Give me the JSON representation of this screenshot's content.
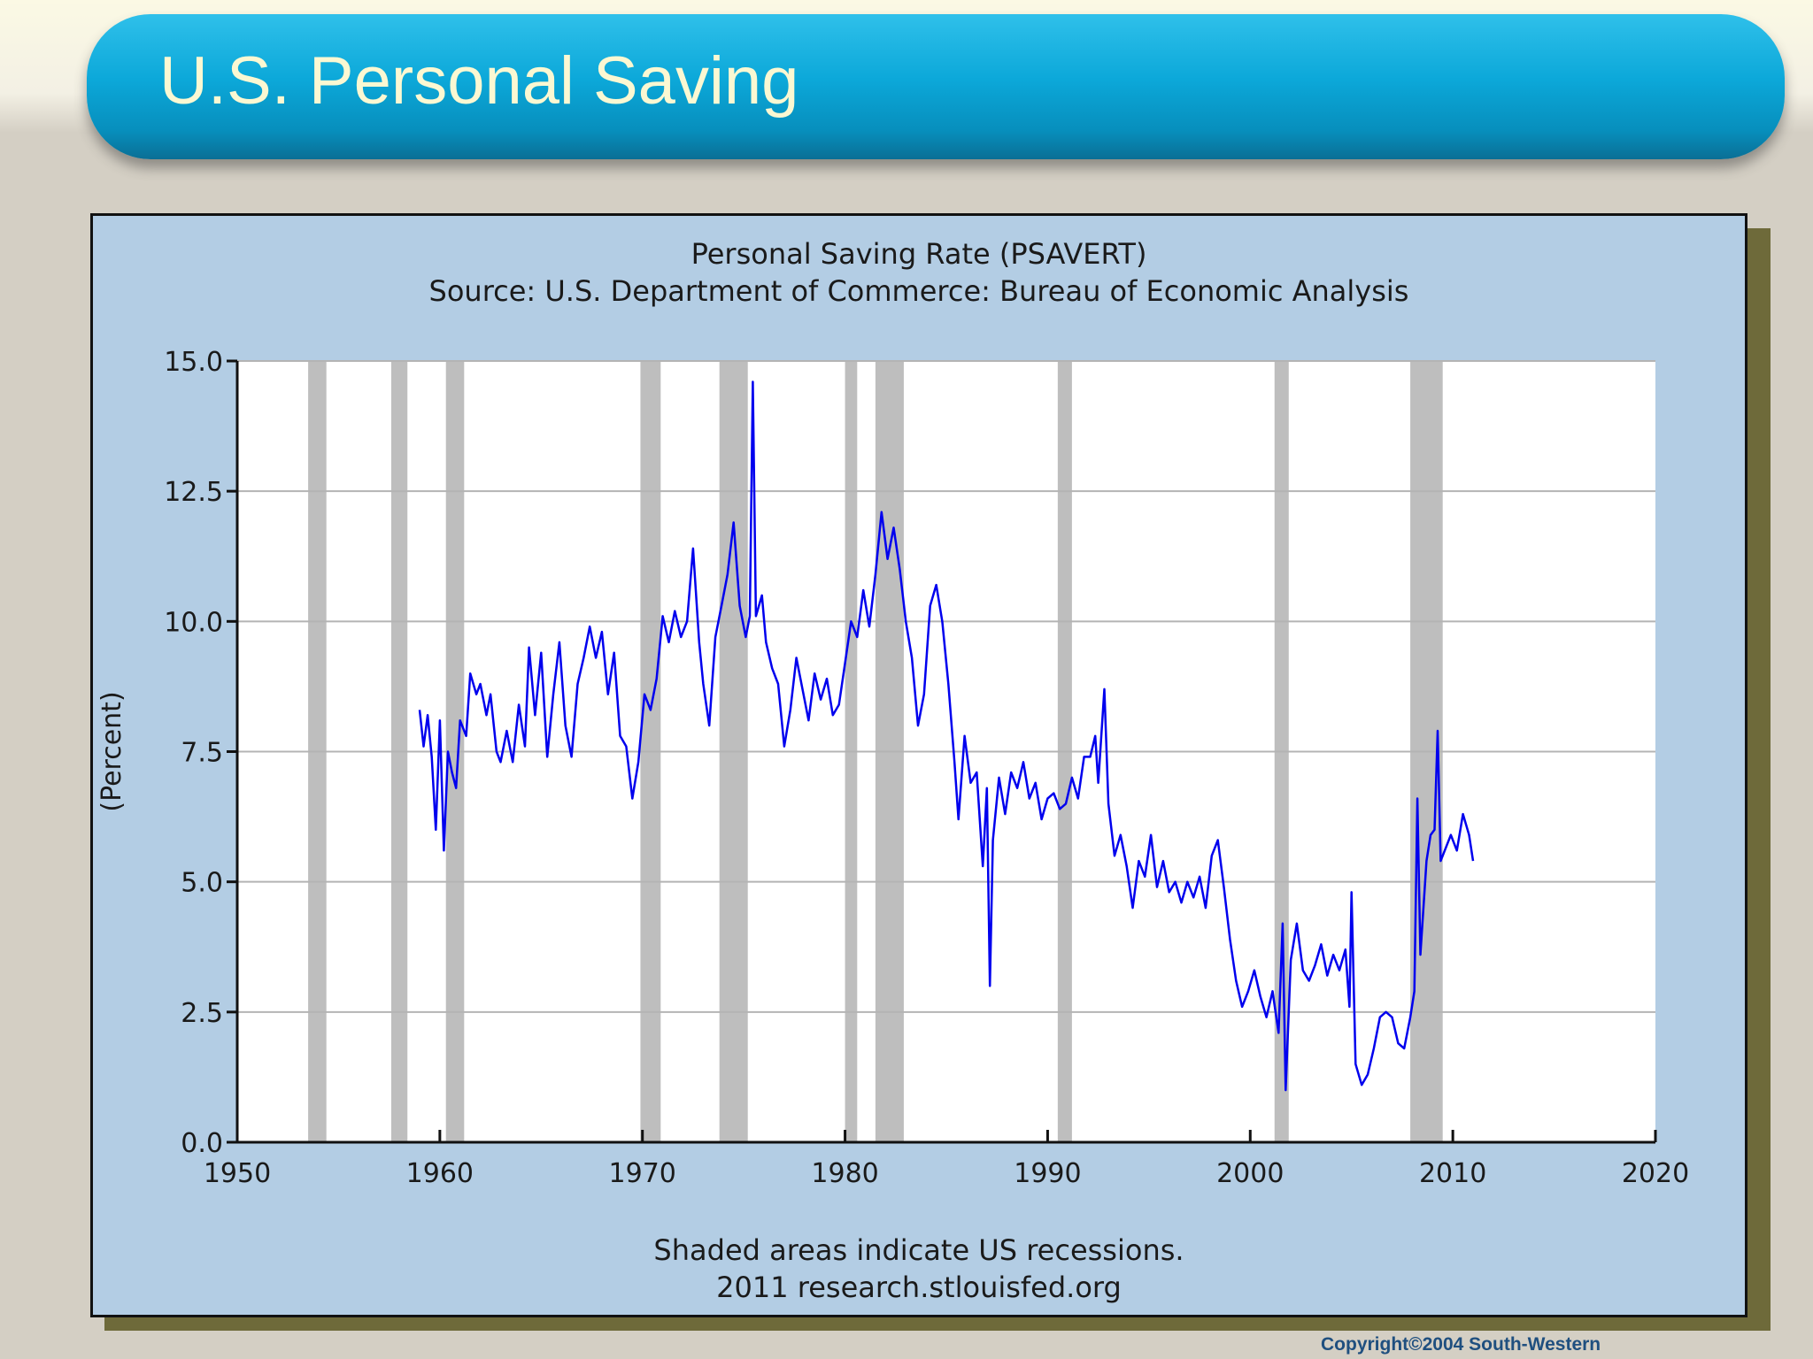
{
  "slide": {
    "title": "U.S. Personal Saving",
    "copyright": "Copyright©2004  South-Western"
  },
  "colors": {
    "line": "#0000ee",
    "recession": "#bebebe",
    "plot_bg": "#ffffff",
    "panel_bg": "#b3cde4"
  },
  "chart_data": {
    "type": "line",
    "title": "Personal Saving Rate (PSAVERT)",
    "subtitle": "Source: U.S. Department of Commerce: Bureau of Economic Analysis",
    "ylabel": "(Percent)",
    "xlabel": "",
    "xlim": [
      1950,
      2020
    ],
    "ylim": [
      0,
      15
    ],
    "xticks": [
      "1950",
      "1960",
      "1970",
      "1980",
      "1990",
      "2000",
      "2010",
      "2020"
    ],
    "yticks": [
      "0.0",
      "2.5",
      "5.0",
      "7.5",
      "10.0",
      "12.5",
      "15.0"
    ],
    "grid": true,
    "footnote": [
      "Shaded areas indicate US recessions.",
      "2011 research.stlouisfed.org"
    ],
    "recessions": [
      [
        1953.5,
        1954.4
      ],
      [
        1957.6,
        1958.4
      ],
      [
        1960.3,
        1961.2
      ],
      [
        1969.9,
        1970.9
      ],
      [
        1973.8,
        1975.2
      ],
      [
        1980.0,
        1980.6
      ],
      [
        1981.5,
        1982.9
      ],
      [
        1990.5,
        1991.2
      ],
      [
        2001.2,
        2001.9
      ],
      [
        2007.9,
        2009.5
      ]
    ],
    "series": [
      {
        "values": [
          [
            1959.0,
            8.3
          ],
          [
            1959.2,
            7.6
          ],
          [
            1959.4,
            8.2
          ],
          [
            1959.6,
            7.4
          ],
          [
            1959.8,
            6.0
          ],
          [
            1960.0,
            8.1
          ],
          [
            1960.2,
            5.6
          ],
          [
            1960.4,
            7.5
          ],
          [
            1960.6,
            7.1
          ],
          [
            1960.8,
            6.8
          ],
          [
            1961.0,
            8.1
          ],
          [
            1961.3,
            7.8
          ],
          [
            1961.5,
            9.0
          ],
          [
            1961.8,
            8.6
          ],
          [
            1962.0,
            8.8
          ],
          [
            1962.3,
            8.2
          ],
          [
            1962.5,
            8.6
          ],
          [
            1962.8,
            7.5
          ],
          [
            1963.0,
            7.3
          ],
          [
            1963.3,
            7.9
          ],
          [
            1963.6,
            7.3
          ],
          [
            1963.9,
            8.4
          ],
          [
            1964.2,
            7.6
          ],
          [
            1964.4,
            9.5
          ],
          [
            1964.7,
            8.2
          ],
          [
            1965.0,
            9.4
          ],
          [
            1965.3,
            7.4
          ],
          [
            1965.6,
            8.6
          ],
          [
            1965.9,
            9.6
          ],
          [
            1966.2,
            8.0
          ],
          [
            1966.5,
            7.4
          ],
          [
            1966.8,
            8.8
          ],
          [
            1967.1,
            9.3
          ],
          [
            1967.4,
            9.9
          ],
          [
            1967.7,
            9.3
          ],
          [
            1968.0,
            9.8
          ],
          [
            1968.3,
            8.6
          ],
          [
            1968.6,
            9.4
          ],
          [
            1968.9,
            7.8
          ],
          [
            1969.2,
            7.6
          ],
          [
            1969.5,
            6.6
          ],
          [
            1969.8,
            7.3
          ],
          [
            1970.1,
            8.6
          ],
          [
            1970.4,
            8.3
          ],
          [
            1970.7,
            8.9
          ],
          [
            1971.0,
            10.1
          ],
          [
            1971.3,
            9.6
          ],
          [
            1971.6,
            10.2
          ],
          [
            1971.9,
            9.7
          ],
          [
            1972.2,
            10.0
          ],
          [
            1972.5,
            11.4
          ],
          [
            1972.8,
            9.6
          ],
          [
            1973.0,
            8.8
          ],
          [
            1973.3,
            8.0
          ],
          [
            1973.6,
            9.7
          ],
          [
            1973.9,
            10.3
          ],
          [
            1974.2,
            10.9
          ],
          [
            1974.5,
            11.9
          ],
          [
            1974.8,
            10.3
          ],
          [
            1975.1,
            9.7
          ],
          [
            1975.3,
            10.1
          ],
          [
            1975.45,
            14.6
          ],
          [
            1975.6,
            10.1
          ],
          [
            1975.9,
            10.5
          ],
          [
            1976.1,
            9.6
          ],
          [
            1976.4,
            9.1
          ],
          [
            1976.7,
            8.8
          ],
          [
            1977.0,
            7.6
          ],
          [
            1977.3,
            8.3
          ],
          [
            1977.6,
            9.3
          ],
          [
            1977.9,
            8.7
          ],
          [
            1978.2,
            8.1
          ],
          [
            1978.5,
            9.0
          ],
          [
            1978.8,
            8.5
          ],
          [
            1979.1,
            8.9
          ],
          [
            1979.4,
            8.2
          ],
          [
            1979.7,
            8.4
          ],
          [
            1980.0,
            9.2
          ],
          [
            1980.3,
            10.0
          ],
          [
            1980.6,
            9.7
          ],
          [
            1980.9,
            10.6
          ],
          [
            1981.2,
            9.9
          ],
          [
            1981.5,
            10.9
          ],
          [
            1981.8,
            12.1
          ],
          [
            1982.1,
            11.2
          ],
          [
            1982.4,
            11.8
          ],
          [
            1982.7,
            11.0
          ],
          [
            1983.0,
            10.0
          ],
          [
            1983.3,
            9.3
          ],
          [
            1983.6,
            8.0
          ],
          [
            1983.9,
            8.6
          ],
          [
            1984.2,
            10.3
          ],
          [
            1984.5,
            10.7
          ],
          [
            1984.8,
            10.0
          ],
          [
            1985.1,
            8.8
          ],
          [
            1985.4,
            7.3
          ],
          [
            1985.6,
            6.2
          ],
          [
            1985.9,
            7.8
          ],
          [
            1986.2,
            6.9
          ],
          [
            1986.5,
            7.1
          ],
          [
            1986.8,
            5.3
          ],
          [
            1987.0,
            6.8
          ],
          [
            1987.15,
            3.0
          ],
          [
            1987.3,
            5.8
          ],
          [
            1987.6,
            7.0
          ],
          [
            1987.9,
            6.3
          ],
          [
            1988.2,
            7.1
          ],
          [
            1988.5,
            6.8
          ],
          [
            1988.8,
            7.3
          ],
          [
            1989.1,
            6.6
          ],
          [
            1989.4,
            6.9
          ],
          [
            1989.7,
            6.2
          ],
          [
            1990.0,
            6.6
          ],
          [
            1990.3,
            6.7
          ],
          [
            1990.6,
            6.4
          ],
          [
            1990.9,
            6.5
          ],
          [
            1991.2,
            7.0
          ],
          [
            1991.5,
            6.6
          ],
          [
            1991.8,
            7.4
          ],
          [
            1992.1,
            7.4
          ],
          [
            1992.35,
            7.8
          ],
          [
            1992.5,
            6.9
          ],
          [
            1992.8,
            8.7
          ],
          [
            1993.0,
            6.5
          ],
          [
            1993.3,
            5.5
          ],
          [
            1993.6,
            5.9
          ],
          [
            1993.9,
            5.3
          ],
          [
            1994.2,
            4.5
          ],
          [
            1994.5,
            5.4
          ],
          [
            1994.8,
            5.1
          ],
          [
            1995.1,
            5.9
          ],
          [
            1995.4,
            4.9
          ],
          [
            1995.7,
            5.4
          ],
          [
            1996.0,
            4.8
          ],
          [
            1996.3,
            5.0
          ],
          [
            1996.6,
            4.6
          ],
          [
            1996.9,
            5.0
          ],
          [
            1997.2,
            4.7
          ],
          [
            1997.5,
            5.1
          ],
          [
            1997.8,
            4.5
          ],
          [
            1998.1,
            5.5
          ],
          [
            1998.4,
            5.8
          ],
          [
            1998.7,
            4.9
          ],
          [
            1999.0,
            3.9
          ],
          [
            1999.3,
            3.1
          ],
          [
            1999.6,
            2.6
          ],
          [
            1999.9,
            2.9
          ],
          [
            2000.2,
            3.3
          ],
          [
            2000.5,
            2.8
          ],
          [
            2000.8,
            2.4
          ],
          [
            2001.1,
            2.9
          ],
          [
            2001.4,
            2.1
          ],
          [
            2001.6,
            4.2
          ],
          [
            2001.75,
            1.0
          ],
          [
            2002.0,
            3.5
          ],
          [
            2002.3,
            4.2
          ],
          [
            2002.6,
            3.3
          ],
          [
            2002.9,
            3.1
          ],
          [
            2003.2,
            3.4
          ],
          [
            2003.5,
            3.8
          ],
          [
            2003.8,
            3.2
          ],
          [
            2004.1,
            3.6
          ],
          [
            2004.4,
            3.3
          ],
          [
            2004.7,
            3.7
          ],
          [
            2004.9,
            2.6
          ],
          [
            2005.0,
            4.8
          ],
          [
            2005.2,
            1.5
          ],
          [
            2005.5,
            1.1
          ],
          [
            2005.8,
            1.3
          ],
          [
            2006.1,
            1.8
          ],
          [
            2006.4,
            2.4
          ],
          [
            2006.7,
            2.5
          ],
          [
            2007.0,
            2.4
          ],
          [
            2007.3,
            1.9
          ],
          [
            2007.6,
            1.8
          ],
          [
            2007.9,
            2.4
          ],
          [
            2008.1,
            2.9
          ],
          [
            2008.25,
            6.6
          ],
          [
            2008.4,
            3.6
          ],
          [
            2008.7,
            5.4
          ],
          [
            2008.9,
            5.9
          ],
          [
            2009.1,
            6.0
          ],
          [
            2009.25,
            7.9
          ],
          [
            2009.4,
            5.4
          ],
          [
            2009.6,
            5.6
          ],
          [
            2009.9,
            5.9
          ],
          [
            2010.2,
            5.6
          ],
          [
            2010.5,
            6.3
          ],
          [
            2010.8,
            5.9
          ],
          [
            2011.0,
            5.4
          ]
        ]
      }
    ]
  }
}
